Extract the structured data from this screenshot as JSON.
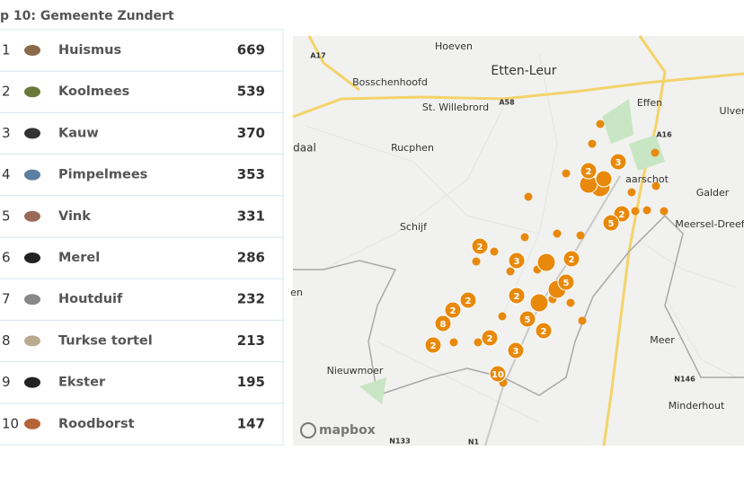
{
  "header": {
    "title": "p 10: Gemeente Zundert"
  },
  "table": {
    "rows": [
      [
        "1",
        "Huismus",
        669
      ],
      [
        "2",
        "Koolmees",
        539
      ],
      [
        "3",
        "Kauw",
        370
      ],
      [
        "4",
        "Pimpelmees",
        353
      ],
      [
        "5",
        "Vink",
        331
      ],
      [
        "6",
        "Merel",
        286
      ],
      [
        "7",
        "Houtduif",
        232
      ],
      [
        "8",
        "Turkse tortel",
        213
      ],
      [
        "9",
        "Ekster",
        195
      ],
      [
        "10",
        "Roodborst",
        147
      ]
    ]
  },
  "map": {
    "places": [
      "Hoeven",
      "Etten-Leur",
      "Bosschenhoofd",
      "St. Willebrord",
      "Effen",
      "Ulver",
      "daal",
      "Rucphen",
      "aarschot",
      "Galder",
      "Meersel-Dreef",
      "Schijf",
      "en",
      "Meer",
      "Nieuwmoer",
      "Minderhout"
    ],
    "roads": [
      "A17",
      "A58",
      "A16",
      "N146",
      "N133",
      "N1"
    ],
    "clusters": [
      2,
      3,
      2,
      5,
      2,
      3,
      2,
      5,
      2,
      2,
      2,
      5,
      8,
      2,
      2,
      2,
      3,
      10
    ],
    "logo": "mapbox"
  }
}
